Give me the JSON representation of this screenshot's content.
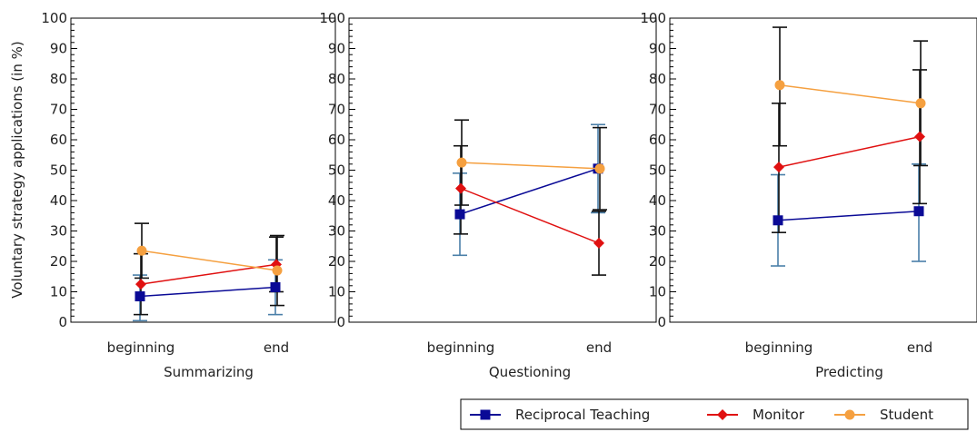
{
  "chart_data": {
    "type": "line",
    "ylabel": "Voluntary strategy applications (in %)",
    "ylim": [
      0,
      100
    ],
    "yticks": [
      0,
      10,
      20,
      30,
      40,
      50,
      60,
      70,
      80,
      90,
      100
    ],
    "categories": [
      "beginning",
      "end"
    ],
    "legend": {
      "placement": "bottom-right",
      "entries": [
        "Reciprocal Teaching",
        "Monitor",
        "Student"
      ]
    },
    "colors": {
      "Reciprocal Teaching": "#0a0a96",
      "Monitor": "#e01010",
      "Student": "#f5a040"
    },
    "panels": [
      {
        "xlabel": "Summarizing",
        "series": [
          {
            "name": "Reciprocal Teaching",
            "values": [
              8.5,
              11.5
            ],
            "error_low": [
              0.5,
              2.5
            ],
            "error_high": [
              15.5,
              20.5
            ],
            "error_color": "#4a7fa8"
          },
          {
            "name": "Monitor",
            "values": [
              12.5,
              19.0
            ],
            "error_low": [
              2.5,
              10.0
            ],
            "error_high": [
              22.5,
              28.0
            ],
            "error_color": "#111111"
          },
          {
            "name": "Student",
            "values": [
              23.5,
              17.0
            ],
            "error_low": [
              14.5,
              5.5
            ],
            "error_high": [
              32.5,
              28.5
            ],
            "error_color": "#111111"
          }
        ]
      },
      {
        "xlabel": "Questioning",
        "series": [
          {
            "name": "Reciprocal Teaching",
            "values": [
              35.5,
              50.5
            ],
            "error_low": [
              22.0,
              36.0
            ],
            "error_high": [
              49.0,
              65.0
            ],
            "error_color": "#4a7fa8"
          },
          {
            "name": "Monitor",
            "values": [
              44.0,
              26.0
            ],
            "error_low": [
              29.0,
              15.5
            ],
            "error_high": [
              58.0,
              36.5
            ],
            "error_color": "#111111"
          },
          {
            "name": "Student",
            "values": [
              52.5,
              50.5
            ],
            "error_low": [
              38.5,
              37.0
            ],
            "error_high": [
              66.5,
              64.0
            ],
            "error_color": "#111111"
          }
        ]
      },
      {
        "xlabel": "Predicting",
        "series": [
          {
            "name": "Reciprocal Teaching",
            "values": [
              33.5,
              36.5
            ],
            "error_low": [
              18.5,
              20.0
            ],
            "error_high": [
              48.5,
              52.0
            ],
            "error_color": "#4a7fa8"
          },
          {
            "name": "Monitor",
            "values": [
              51.0,
              61.0
            ],
            "error_low": [
              29.5,
              39.0
            ],
            "error_high": [
              72.0,
              83.0
            ],
            "error_color": "#111111"
          },
          {
            "name": "Student",
            "values": [
              78.0,
              72.0
            ],
            "error_low": [
              58.0,
              51.5
            ],
            "error_high": [
              97.0,
              92.5
            ],
            "error_color": "#111111"
          }
        ]
      }
    ]
  }
}
